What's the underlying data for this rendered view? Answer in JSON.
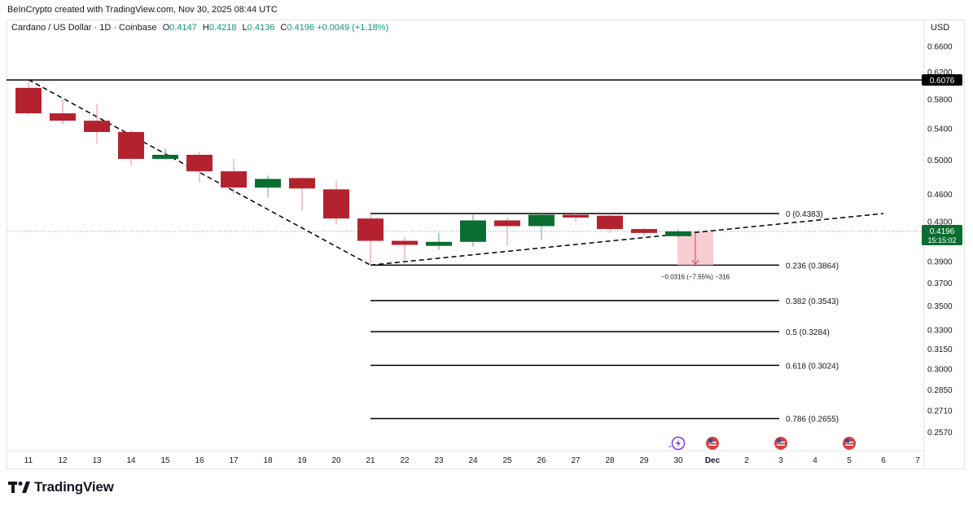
{
  "credit": "BeInCrypto created with TradingView.com, Nov 30, 2025 08:44 UTC",
  "legend": {
    "symbol": "Cardano / US Dollar · 1D · Coinbase",
    "o_label": "O",
    "o": "0.4147",
    "h_label": "H",
    "h": "0.4218",
    "l_label": "L",
    "l": "0.4136",
    "c_label": "C",
    "c": "0.4196",
    "change": "+0.0049 (+1.18%)"
  },
  "currency": "USD",
  "brand": "TradingView",
  "colors": {
    "up": "#0a6e31",
    "down": "#b5222f",
    "grid": "#e0e3eb",
    "text": "#131722",
    "accent_green": "#089981",
    "measure_fill": "#f7c6cc"
  },
  "chart_data": {
    "type": "candlestick",
    "x_tick_labels": [
      "11",
      "12",
      "13",
      "14",
      "15",
      "16",
      "17",
      "18",
      "19",
      "20",
      "21",
      "22",
      "23",
      "24",
      "25",
      "26",
      "27",
      "28",
      "29",
      "30",
      "Dec",
      "2",
      "3",
      "4",
      "5",
      "6",
      "7"
    ],
    "y_tick_labels": [
      "0.6600",
      "0.6200",
      "0.5800",
      "0.5400",
      "0.5000",
      "0.4600",
      "0.4300",
      "0.3900",
      "0.3700",
      "0.3500",
      "0.3300",
      "0.3150",
      "0.3000",
      "0.2850",
      "0.2710",
      "0.2570"
    ],
    "y_scale": "log",
    "ylim": [
      0.248,
      0.69
    ],
    "candles": [
      {
        "date": "11",
        "o": 0.596,
        "h": 0.605,
        "l": 0.558,
        "c": 0.56
      },
      {
        "date": "12",
        "o": 0.56,
        "h": 0.58,
        "l": 0.545,
        "c": 0.55
      },
      {
        "date": "13",
        "o": 0.55,
        "h": 0.573,
        "l": 0.52,
        "c": 0.535
      },
      {
        "date": "14",
        "o": 0.535,
        "h": 0.538,
        "l": 0.493,
        "c": 0.501
      },
      {
        "date": "15",
        "o": 0.501,
        "h": 0.514,
        "l": 0.5,
        "c": 0.506
      },
      {
        "date": "16",
        "o": 0.506,
        "h": 0.51,
        "l": 0.473,
        "c": 0.486
      },
      {
        "date": "17",
        "o": 0.486,
        "h": 0.501,
        "l": 0.46,
        "c": 0.467
      },
      {
        "date": "18",
        "o": 0.467,
        "h": 0.481,
        "l": 0.456,
        "c": 0.477
      },
      {
        "date": "19",
        "o": 0.478,
        "h": 0.479,
        "l": 0.441,
        "c": 0.466
      },
      {
        "date": "20",
        "o": 0.465,
        "h": 0.475,
        "l": 0.427,
        "c": 0.433
      },
      {
        "date": "21",
        "o": 0.433,
        "h": 0.44,
        "l": 0.388,
        "c": 0.41
      },
      {
        "date": "22",
        "o": 0.41,
        "h": 0.414,
        "l": 0.391,
        "c": 0.406
      },
      {
        "date": "23",
        "o": 0.405,
        "h": 0.418,
        "l": 0.401,
        "c": 0.409
      },
      {
        "date": "24",
        "o": 0.409,
        "h": 0.437,
        "l": 0.404,
        "c": 0.431
      },
      {
        "date": "25",
        "o": 0.431,
        "h": 0.434,
        "l": 0.405,
        "c": 0.425
      },
      {
        "date": "26",
        "o": 0.425,
        "h": 0.44,
        "l": 0.411,
        "c": 0.437
      },
      {
        "date": "27",
        "o": 0.437,
        "h": 0.44,
        "l": 0.429,
        "c": 0.434
      },
      {
        "date": "28",
        "o": 0.436,
        "h": 0.438,
        "l": 0.418,
        "c": 0.422
      },
      {
        "date": "29",
        "o": 0.422,
        "h": 0.423,
        "l": 0.415,
        "c": 0.418
      },
      {
        "date": "30",
        "o": 0.4147,
        "h": 0.4218,
        "l": 0.4136,
        "c": 0.4196
      }
    ],
    "horizontal_line": {
      "value": 0.6076,
      "label": "0.6076"
    },
    "last_price": {
      "value": 0.4196,
      "label": "0.4196",
      "countdown": "15:15:02"
    },
    "fib_levels": [
      {
        "value": 0.4383,
        "label": "0 (0.4383)"
      },
      {
        "value": 0.3864,
        "label": "0.236 (0.3864)"
      },
      {
        "value": 0.3543,
        "label": "0.382 (0.3543)"
      },
      {
        "value": 0.3284,
        "label": "0.5 (0.3284)"
      },
      {
        "value": 0.3024,
        "label": "0.618 (0.3024)"
      },
      {
        "value": 0.2655,
        "label": "0.786 (0.2655)"
      }
    ],
    "measure_label": "−0.0316 (−7.55%) −316",
    "trend_lines": [
      {
        "name": "descending",
        "points": [
          {
            "x": "11",
            "y": 0.608
          },
          {
            "x": "21",
            "y": 0.3864
          }
        ]
      },
      {
        "name": "ascending",
        "points": [
          {
            "x": "21",
            "y": 0.3864
          },
          {
            "x": "6",
            "y": 0.4383
          }
        ]
      }
    ],
    "event_markers": [
      {
        "date": "30",
        "icon": "lightning-icon"
      },
      {
        "date": "Dec",
        "icon": "us-flag-icon"
      },
      {
        "date": "3",
        "icon": "us-flag-icon"
      },
      {
        "date": "5",
        "icon": "us-flag-icon"
      }
    ]
  }
}
